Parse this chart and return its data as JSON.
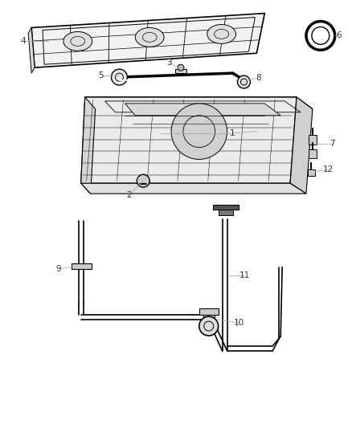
{
  "bg_color": "#ffffff",
  "lc": "#000000",
  "gray": "#888888",
  "figsize": [
    4.38,
    5.33
  ],
  "dpi": 100
}
